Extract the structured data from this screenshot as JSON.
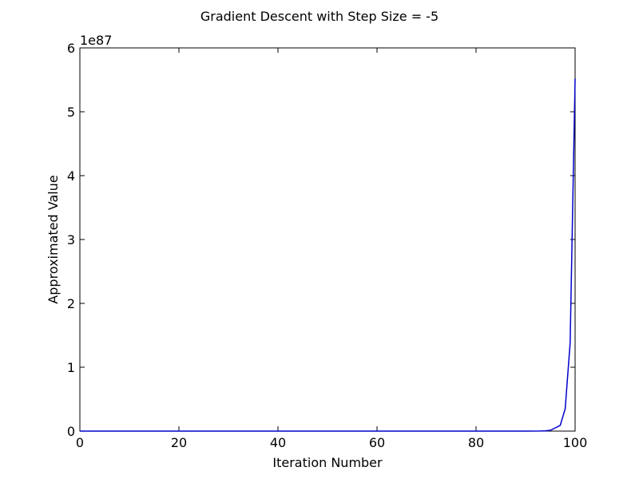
{
  "chart_data": {
    "type": "line",
    "title": "Gradient Descent with Step Size = -5",
    "xlabel": "Iteration Number",
    "ylabel": "Approximated Value",
    "y_offset_label": "1e87",
    "y_scale_exponent": 87,
    "xlim": [
      0,
      100
    ],
    "ylim": [
      0,
      6
    ],
    "xticks": [
      0,
      20,
      40,
      60,
      80,
      100
    ],
    "yticks": [
      0,
      1,
      2,
      3,
      4,
      5,
      6
    ],
    "grid": false,
    "line_color": "#0000cc",
    "series": [
      {
        "x": [
          0,
          10,
          20,
          30,
          40,
          50,
          60,
          70,
          80,
          90,
          93,
          94,
          95,
          96,
          97,
          98,
          99,
          100
        ],
        "y": [
          0,
          0,
          0,
          0,
          0,
          0,
          0,
          0,
          0,
          0.0001,
          0.001,
          0.004,
          0.012,
          0.05,
          0.09,
          0.35,
          1.38,
          5.52
        ]
      }
    ]
  }
}
